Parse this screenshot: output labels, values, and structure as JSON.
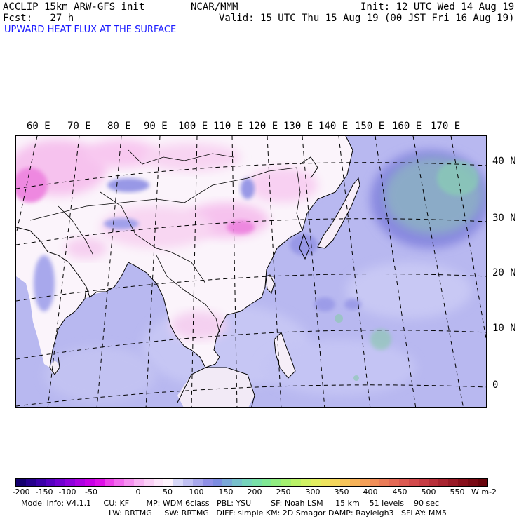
{
  "header": {
    "model": "ACCLIP 15km ARW-GFS init",
    "org": "NCAR/MMM",
    "init": "Init: 12 UTC Wed 14 Aug 19",
    "fcst": "Fcst:   27 h",
    "valid": "Valid: 15 UTC Thu 15 Aug 19 (00 JST Fri 16 Aug 19)",
    "field": "UPWARD HEAT FLUX AT THE SURFACE"
  },
  "map": {
    "lon_labels": [
      "60 E",
      "70 E",
      "80 E",
      "90 E",
      "100 E",
      "110 E",
      "120 E",
      "130 E",
      "140 E",
      "150 E",
      "160 E",
      "170 E"
    ],
    "lat_labels": [
      "40 N",
      "30 N",
      "20 N",
      "10 N",
      "0"
    ],
    "colors": {
      "ocean": "#b8b8f0",
      "land": "#fbf4fb",
      "pink": "#f6c2ee",
      "magenta": "#ee88e0",
      "green": "#8fc8b4",
      "blue": "#9898e6"
    }
  },
  "colorbar": {
    "ticks": [
      "-200",
      "-150",
      "-100",
      "-50",
      "0",
      "50",
      "100",
      "150",
      "200",
      "250",
      "300",
      "350",
      "400",
      "450",
      "500",
      "550"
    ],
    "unit": "W m-2",
    "colors": [
      "#14006e",
      "#25008c",
      "#3a00a8",
      "#5500c0",
      "#7000d0",
      "#8e00dc",
      "#ac00e2",
      "#c800e6",
      "#df10e8",
      "#ee40ea",
      "#f36aee",
      "#f690f0",
      "#f9b4f3",
      "#fbd0f6",
      "#fde6fa",
      "#fff4fd",
      "#d8d8f8",
      "#c0c0f2",
      "#a8a8ec",
      "#9090e6",
      "#7c8ce0",
      "#7aa8d8",
      "#78c0cc",
      "#76d4bc",
      "#78e0a8",
      "#80e894",
      "#90ec80",
      "#a4f070",
      "#baf268",
      "#d0f264",
      "#e2ee60",
      "#eee45e",
      "#f4d65c",
      "#f6c45a",
      "#f6b258",
      "#f4a058",
      "#f08e58",
      "#ea7c58",
      "#e46a56",
      "#dc5a52",
      "#d24a4c",
      "#c63c44",
      "#b8303a",
      "#a82430",
      "#981a26",
      "#88101c",
      "#780a14",
      "#68040c"
    ]
  },
  "model_info": {
    "line1": "Model Info: V4.1.1     CU: KF       MP: WDM 6class   PBL: YSU        SF: Noah LSM     15 km    51 levels    90 sec",
    "line2": "LW: RRTMG     SW: RRTMG   DIFF: simple KM: 2D Smagor DAMP: Rayleigh3   SFLAY: MM5"
  }
}
